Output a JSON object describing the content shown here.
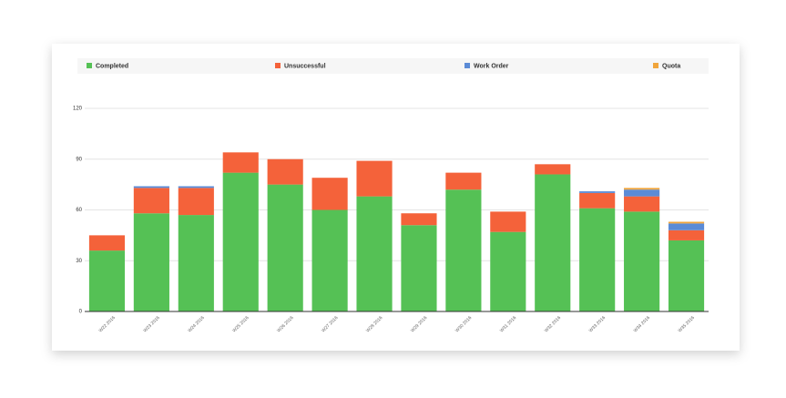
{
  "chart_data": {
    "type": "stacked-bar",
    "categories": [
      "W22 2016",
      "W23 2016",
      "W24 2016",
      "W25 2016",
      "W26 2016",
      "W27 2016",
      "W28 2016",
      "W29 2016",
      "W30 2016",
      "W31 2016",
      "W32 2016",
      "W33 2016",
      "W34 2016",
      "W35 2016"
    ],
    "series": [
      {
        "name": "Completed",
        "color": "#55c155",
        "values": [
          36,
          58,
          57,
          82,
          75,
          60,
          68,
          51,
          72,
          47,
          81,
          61,
          59,
          42
        ]
      },
      {
        "name": "Unsuccessful",
        "color": "#f4623a",
        "values": [
          9,
          15,
          16,
          12,
          15,
          19,
          21,
          7,
          10,
          12,
          6,
          9,
          9,
          6
        ]
      },
      {
        "name": "Work Order",
        "color": "#5b8bd6",
        "values": [
          0,
          1,
          1,
          0,
          0,
          0,
          0,
          0,
          0,
          0,
          0,
          1,
          4,
          4
        ]
      },
      {
        "name": "Quota",
        "color": "#f0a53c",
        "values": [
          0,
          0,
          0,
          0,
          0,
          0,
          0,
          0,
          0,
          0,
          0,
          0,
          1,
          1
        ]
      }
    ],
    "ylim": [
      0,
      120
    ],
    "yticks": [
      0,
      30,
      60,
      90,
      120
    ],
    "grid": true,
    "legend": "top"
  }
}
